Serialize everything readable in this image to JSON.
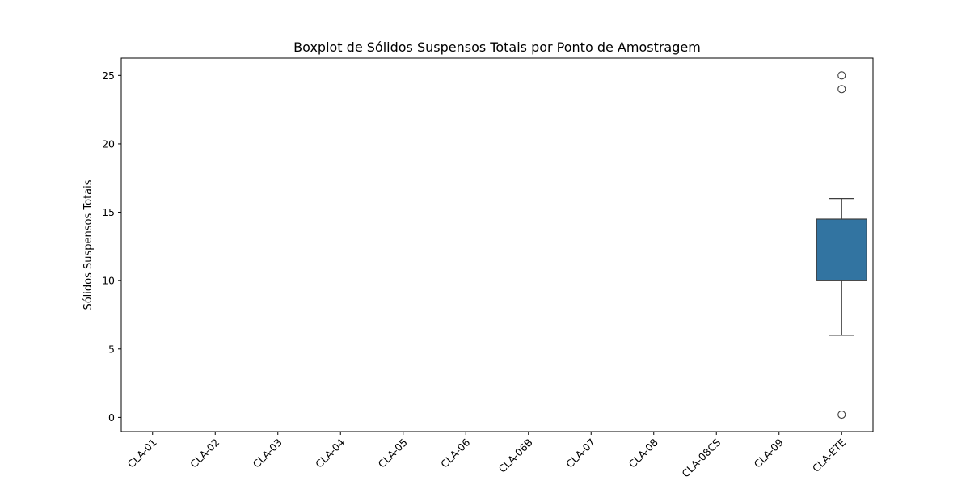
{
  "chart_data": {
    "type": "boxplot",
    "title": "Boxplot de Sólidos Suspensos Totais por Ponto de Amostragem",
    "xlabel": "",
    "ylabel": "Sólidos Suspensos Totais",
    "categories": [
      "CLA-01",
      "CLA-02",
      "CLA-03",
      "CLA-04",
      "CLA-05",
      "CLA-06",
      "CLA-06B",
      "CLA-07",
      "CLA-08",
      "CLA-08CS",
      "CLA-09",
      "CLA-ETE"
    ],
    "yticks": [
      0,
      5,
      10,
      15,
      20,
      25
    ],
    "ylim": [
      -1.04,
      26.26
    ],
    "grid": false,
    "box_color": "#3274a1",
    "boxes": [
      {
        "category": "CLA-ETE",
        "whisker_low": 6,
        "q1": 10,
        "median": 10,
        "q3": 14.5,
        "whisker_high": 16,
        "outliers": [
          25,
          24,
          0.2
        ]
      }
    ]
  }
}
